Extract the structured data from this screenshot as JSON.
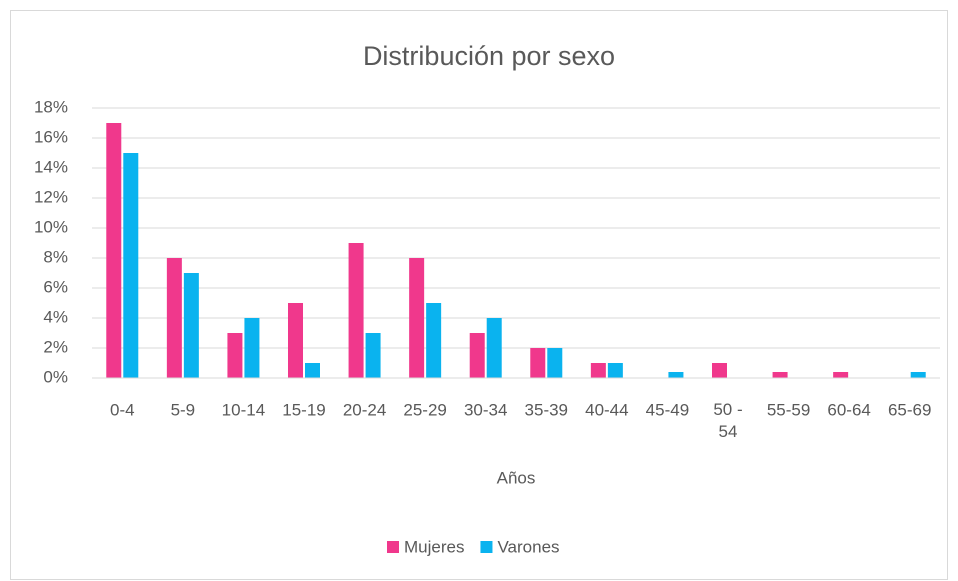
{
  "chart_data": {
    "type": "bar",
    "title": "Distribución por sexo",
    "x_label": "Años",
    "categories": [
      "0-4",
      "5-9",
      "10-14",
      "15-19",
      "20-24",
      "25-29",
      "30-34",
      "35-39",
      "40-44",
      "45-49",
      "50 - 54",
      "55-59",
      "60-64",
      "65-69"
    ],
    "series": [
      {
        "name": "Mujeres",
        "color": "#f0388c",
        "values": [
          17,
          8,
          3,
          5,
          9,
          8,
          3,
          2,
          1,
          0,
          1,
          0.4,
          0.4,
          0
        ]
      },
      {
        "name": "Varones",
        "color": "#0ab3ef",
        "values": [
          15,
          7,
          4,
          1,
          3,
          5,
          4,
          2,
          1,
          0.4,
          0,
          0,
          0,
          0.4
        ]
      }
    ],
    "ylim": [
      0,
      18
    ],
    "yticks": [
      {
        "value": 0,
        "label": "0%"
      },
      {
        "value": 2,
        "label": "2%"
      },
      {
        "value": 4,
        "label": "4%"
      },
      {
        "value": 6,
        "label": "6%"
      },
      {
        "value": 8,
        "label": "8%"
      },
      {
        "value": 10,
        "label": "10%"
      },
      {
        "value": 12,
        "label": "12%"
      },
      {
        "value": 14,
        "label": "14%"
      },
      {
        "value": 16,
        "label": "16%"
      },
      {
        "value": 18,
        "label": "18%"
      }
    ],
    "grid": true,
    "legend": "bottom"
  }
}
